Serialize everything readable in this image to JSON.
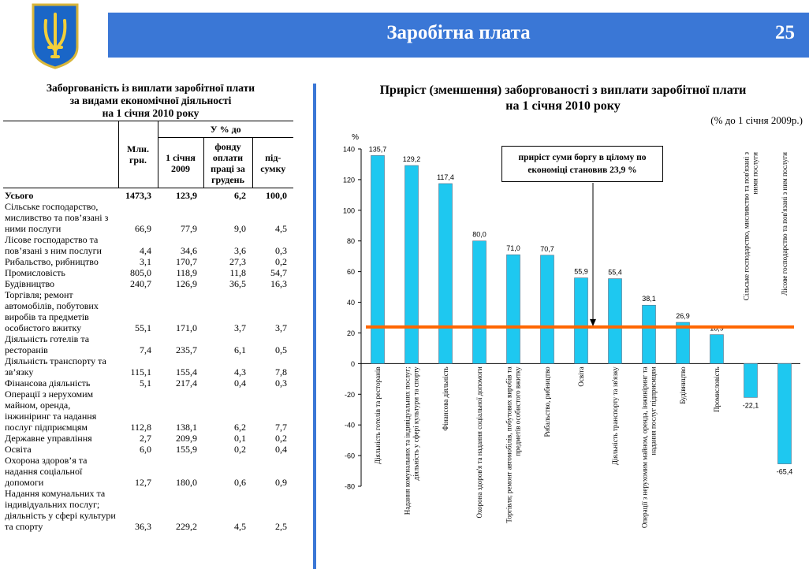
{
  "header": {
    "title": "Заробітна плата",
    "page_number": "25"
  },
  "left_table": {
    "title_lines": [
      "Заборгованість із виплати заробітної плати",
      "за видами економічної діяльності",
      "на 1 січня 2010 року"
    ],
    "columns": {
      "mln": "Млн. грн.",
      "group": "У % до",
      "jan": "1 січня 2009",
      "fund": "фонду оплати праці за грудень",
      "total": "під-сумку"
    },
    "rows": [
      {
        "label": "Усього",
        "mln": "1473,3",
        "jan": "123,9",
        "fund": "6,2",
        "share": "100,0"
      },
      {
        "label": "Сільське господарство, мисливство та пов’язані з ними послуги",
        "mln": "66,9",
        "jan": "77,9",
        "fund": "9,0",
        "share": "4,5"
      },
      {
        "label": "Лісове господарство  та пов’язані з ним послуги",
        "mln": "4,4",
        "jan": "34,6",
        "fund": "3,6",
        "share": "0,3"
      },
      {
        "label": "Рибальство, рибництво",
        "mln": "3,1",
        "jan": "170,7",
        "fund": "27,3",
        "share": "0,2"
      },
      {
        "label": "Промисловість",
        "mln": "805,0",
        "jan": "118,9",
        "fund": "11,8",
        "share": "54,7"
      },
      {
        "label": "Будівництво",
        "mln": "240,7",
        "jan": "126,9",
        "fund": "36,5",
        "share": "16,3"
      },
      {
        "label": "Торгівля; ремонт автомобілів, побутових виробів та предметів особистого вжитку",
        "mln": "55,1",
        "jan": "171,0",
        "fund": "3,7",
        "share": "3,7"
      },
      {
        "label": "Діяльність готелів та ресторанів",
        "mln": "7,4",
        "jan": "235,7",
        "fund": "6,1",
        "share": "0,5"
      },
      {
        "label": "Діяльність транспорту та зв’язку",
        "mln": "115,1",
        "jan": "155,4",
        "fund": "4,3",
        "share": "7,8"
      },
      {
        "label": "Фінансова діяльність",
        "mln": "5,1",
        "jan": "217,4",
        "fund": "0,4",
        "share": "0,3"
      },
      {
        "label": "Операції з нерухомим майном, оренда, інжиніринг та надання послуг підприємцям",
        "mln": "112,8",
        "jan": "138,1",
        "fund": "6,2",
        "share": "7,7"
      },
      {
        "label": "Державне управління",
        "mln": "2,7",
        "jan": "209,9",
        "fund": "0,1",
        "share": "0,2"
      },
      {
        "label": "Освіта",
        "mln": "6,0",
        "jan": "155,9",
        "fund": "0,2",
        "share": "0,4"
      },
      {
        "label": "Охорона здоров’я та надання соціальної допомоги",
        "mln": "12,7",
        "jan": "180,0",
        "fund": "0,6",
        "share": "0,9"
      },
      {
        "label": "Надання комунальних та індивідуальних послуг; діяльність у сфері культури та спорту",
        "mln": "36,3",
        "jan": "229,2",
        "fund": "4,5",
        "share": "2,5"
      }
    ]
  },
  "chart_data": {
    "type": "bar",
    "title": "Приріст (зменшення) заборгованості з виплати заробітної плати на 1 січня 2010 року",
    "title_lines": [
      "Приріст (зменшення) заборгованості з виплати заробітної плати",
      "на 1 січня 2010 року"
    ],
    "subtitle": "(% до 1 січня 2009р.)",
    "ylabel": "%",
    "ylim": [
      -80,
      140
    ],
    "yticks": [
      -80,
      -60,
      -40,
      -20,
      0,
      20,
      40,
      60,
      80,
      100,
      120,
      140
    ],
    "categories": [
      "Діяльність готелів та ресторанів",
      "Надання комунальних та індивідуальних послуг; діяльність у сфері культури та спорту",
      "Фінансова діяльність",
      "Охорона здоров'я та надання соціальної допомоги",
      "Торгівля; ремонт автомобілів, побутових виробів та предметів особистого вжитку",
      "Рибальство, рибництво",
      "Освіта",
      "Діяльність транспорту та зв'язку",
      "Операції з нерухомим майном, оренда, інжиніринг та надання послуг підприємцям",
      "Будівництво",
      "Промисловість",
      "Сільське господарство, мисливство та пов'язані з ними послуги",
      "Лісове господарство та пов'язані з ним послуги"
    ],
    "category_label_lines": [
      [
        "Діяльність готелів та ресторанів"
      ],
      [
        "Надання комунальних та індивідуальних послуг;",
        "діяльність у сфері культури та спорту"
      ],
      [
        "Фінансова діяльність"
      ],
      [
        "Охорона здоров'я та надання соціальної допомоги"
      ],
      [
        "Торгівля; ремонт автомобілів, побутових виробів та",
        "предметів особистого вжитку"
      ],
      [
        "Рибальство, рибництво"
      ],
      [
        "Освіта"
      ],
      [
        "Діяльність транспорту та зв'язку"
      ],
      [
        "Операції з нерухомим майном, оренда, інжиніринг та",
        "надання послуг підприємцям"
      ],
      [
        "Будівництво"
      ],
      [
        "Промисловість"
      ],
      [
        "Сільське господарство, мисливство та пов'язані з",
        "ними послуги"
      ],
      [
        "Лісове господарство та пов'язані з ним послуги"
      ]
    ],
    "values": [
      135.7,
      129.2,
      117.4,
      80.0,
      71.0,
      70.7,
      55.9,
      55.4,
      38.1,
      26.9,
      18.9,
      -22.1,
      -65.4
    ],
    "value_labels": [
      "135,7",
      "129,2",
      "117,4",
      "80,0",
      "71,0",
      "70,7",
      "55,9",
      "55,4",
      "38,1",
      "26,9",
      "18,9",
      "-22,1",
      "-65,4"
    ],
    "reference_line": {
      "value": 23.9,
      "label": "приріст суми боргу в цілому по економіці становив 23,9 %",
      "color": "#ff6600"
    },
    "annotation_lines": [
      "приріст суми боргу в цілому по",
      "економіці становив 23,9 %"
    ],
    "bar_color": "#1ec8f0"
  }
}
